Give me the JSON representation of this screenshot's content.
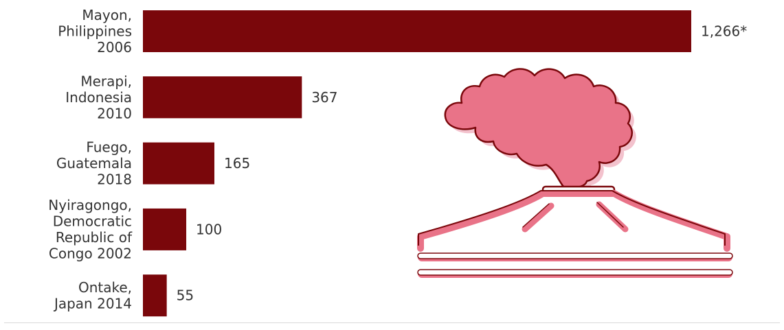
{
  "chart_data": {
    "type": "bar",
    "orientation": "horizontal",
    "categories": [
      [
        "Mayon,",
        "Philippines",
        "2006"
      ],
      [
        "Merapi,",
        "Indonesia",
        "2010"
      ],
      [
        "Fuego,",
        "Guatemala",
        "2018"
      ],
      [
        "Nyiragongo,",
        "Democratic",
        "Republic of",
        "Congo 2002"
      ],
      [
        "Ontake,",
        "Japan 2014"
      ]
    ],
    "values": [
      1266,
      367,
      165,
      100,
      55
    ],
    "value_labels": [
      "1,266*",
      "367",
      "165",
      "100",
      "55"
    ],
    "title": "",
    "xlabel": "",
    "ylabel": "",
    "xlim": [
      0,
      1266
    ],
    "grid": false,
    "legend": "none",
    "bar_color": "#7a070b",
    "illustration": {
      "subject": "volcano-icon",
      "fill_color": "#e97388",
      "outline_color": "#7a070b"
    }
  }
}
